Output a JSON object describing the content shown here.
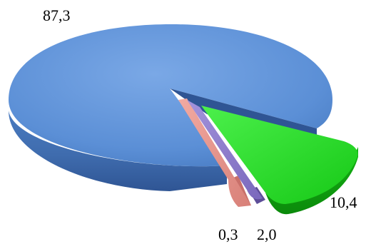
{
  "chart_data": {
    "type": "pie",
    "title": "",
    "slices": [
      {
        "label": "87,3",
        "value": 87.3,
        "color": "#5b8fd6",
        "exploded": false
      },
      {
        "label": "10,4",
        "value": 10.4,
        "color": "#22dd22",
        "exploded": true
      },
      {
        "label": "2,0",
        "value": 2.0,
        "color": "#8a78c8",
        "exploded": true
      },
      {
        "label": "0,3",
        "value": 0.3,
        "color": "#e8938a",
        "exploded": true
      }
    ],
    "legend": "none",
    "style": "3d-exploded"
  }
}
